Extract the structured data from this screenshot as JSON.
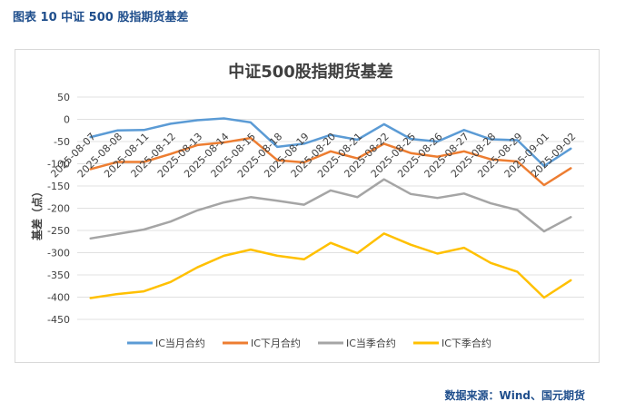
{
  "figure_label": "图表 10  中证 500 股指期货基差",
  "source_note": "数据来源：Wind、国元期货",
  "chart_data": {
    "type": "line",
    "title": "中证500股指期货基差",
    "xlabel": "",
    "ylabel": "基差（点）",
    "ylim": [
      -450,
      50
    ],
    "yticks": [
      50,
      0,
      -50,
      -100,
      -150,
      -200,
      -250,
      -300,
      -350,
      -400,
      -450
    ],
    "grid": true,
    "legend_position": "bottom",
    "x": [
      "2025-08-07",
      "2025-08-08",
      "2025-08-11",
      "2025-08-12",
      "2025-08-13",
      "2025-08-14",
      "2025-08-15",
      "2025-08-18",
      "2025-08-19",
      "2025-08-20",
      "2025-08-21",
      "2025-08-22",
      "2025-08-25",
      "2025-08-26",
      "2025-08-27",
      "2025-08-28",
      "2025-08-29",
      "2025-09-01",
      "2025-09-02"
    ],
    "series": [
      {
        "name": "IC当月合约",
        "color": "#5b9bd5",
        "values": [
          -40,
          -25,
          -24,
          -10,
          -2,
          2,
          -7,
          -62,
          -55,
          -35,
          -46,
          -11,
          -44,
          -50,
          -24,
          -45,
          -47,
          -105,
          -66
        ]
      },
      {
        "name": "IC下月合约",
        "color": "#ed7d31",
        "values": [
          -112,
          -96,
          -96,
          -78,
          -58,
          -52,
          -42,
          -92,
          -97,
          -72,
          -88,
          -55,
          -76,
          -84,
          -72,
          -90,
          -95,
          -148,
          -110
        ]
      },
      {
        "name": "IC当季合约",
        "color": "#a5a5a5",
        "values": [
          -268,
          -258,
          -248,
          -230,
          -205,
          -187,
          -175,
          -183,
          -192,
          -160,
          -175,
          -135,
          -168,
          -177,
          -167,
          -189,
          -204,
          -252,
          -220
        ]
      },
      {
        "name": "IC下季合约",
        "color": "#ffc000",
        "values": [
          -402,
          -393,
          -387,
          -366,
          -333,
          -307,
          -293,
          -307,
          -315,
          -278,
          -301,
          -257,
          -282,
          -302,
          -289,
          -323,
          -343,
          -401,
          -362
        ]
      }
    ]
  }
}
